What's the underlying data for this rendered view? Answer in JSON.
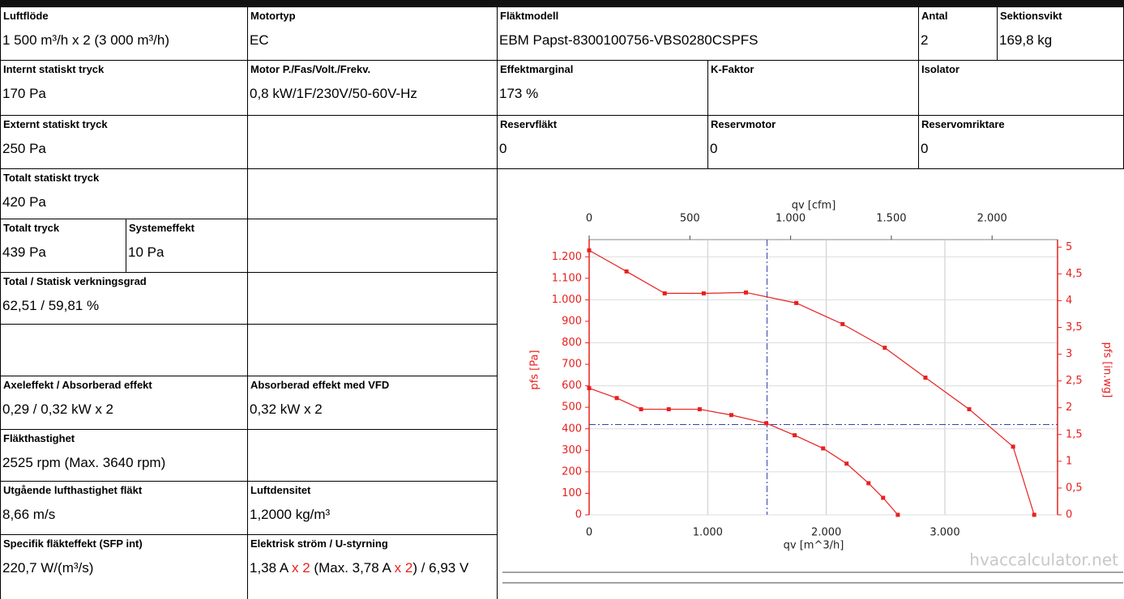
{
  "table": {
    "cells": [
      {
        "label": "Luftflöde",
        "value": "1 500 m³/h x 2 (3 000 m³/h)"
      },
      {
        "label": "Motortyp",
        "value": "EC"
      },
      {
        "label": "Fläktmodell",
        "value": "EBM Papst-8300100756-VBS0280CSPFS"
      },
      {
        "label": "Antal",
        "value": "2"
      },
      {
        "label": "Sektionsvikt",
        "value": "169,8 kg"
      },
      {
        "label": "Internt statiskt tryck",
        "value": "170 Pa"
      },
      {
        "label": "Motor P./Fas/Volt./Frekv.",
        "value": "0,8 kW/1F/230V/50-60V-Hz"
      },
      {
        "label": "Effektmarginal",
        "value": "173 %"
      },
      {
        "label": "K-Faktor"
      },
      {
        "label": "Isolator"
      },
      {
        "label": "Externt statiskt tryck",
        "value": "250 Pa"
      },
      {
        "label": "Reservfläkt",
        "value": "0"
      },
      {
        "label": "Reservmotor",
        "value": "0"
      },
      {
        "label": "Reservomriktare",
        "value": "0"
      },
      {
        "label": "Totalt statiskt tryck",
        "value": "420 Pa"
      },
      {
        "label": "Totalt tryck",
        "value": "439 Pa"
      },
      {
        "label": "Systemeffekt",
        "value": "10 Pa"
      },
      {
        "label": "Total / Statisk verkningsgrad",
        "value": "62,51 / 59,81 %"
      },
      {
        "label": "Axeleffekt / Absorberad effekt",
        "value": "0,29 / 0,32 kW x 2"
      },
      {
        "label": "Absorberad effekt med VFD",
        "value": "0,32 kW x 2"
      },
      {
        "label": "Fläkthastighet",
        "value": "2525 rpm (Max. 3640 rpm)"
      },
      {
        "label": "Utgående lufthastighet fläkt",
        "value": "8,66 m/s"
      },
      {
        "label": "Luftdensitet",
        "value": "1,2000 kg/m³"
      },
      {
        "label": "Specifik fläkteffekt (SFP int)",
        "value": "220,7 W/(m³/s)"
      },
      {
        "label": "Elektrisk ström / U-styrning",
        "value_parts": [
          {
            "text": "1,38 A "
          },
          {
            "text": "x 2",
            "color": "#e8201e"
          },
          {
            "text": " (Max. 3,78 A "
          },
          {
            "text": "x 2",
            "color": "#e8201e"
          },
          {
            "text": ") / 6,93 V"
          }
        ]
      }
    ]
  },
  "chart_data": {
    "type": "line",
    "xlabel": "qv [m^3/h]",
    "x2label": "qv [cfm]",
    "ylabel": "pfs [Pa]",
    "y2label": "pfs [in.wg]",
    "watermark": "hvaccalculator.net",
    "xlim": [
      0,
      3950
    ],
    "xticks": [
      0,
      {
        "value": 1000,
        "label": "1.000"
      },
      {
        "value": 2000,
        "label": "2.000"
      },
      {
        "value": 3000,
        "label": "3.000"
      }
    ],
    "x2lim": [
      0,
      2325
    ],
    "x2ticks": [
      0,
      500,
      {
        "value": 1000,
        "label": "1.000"
      },
      {
        "value": 1500,
        "label": "1.500"
      },
      {
        "value": 2000,
        "label": "2.000"
      }
    ],
    "ylim": [
      0,
      1280
    ],
    "yticks": [
      0,
      100,
      200,
      300,
      400,
      500,
      600,
      700,
      800,
      900,
      {
        "value": 1000,
        "label": "1.000"
      },
      {
        "value": 1100,
        "label": "1.100"
      },
      {
        "value": 1200,
        "label": "1.200"
      }
    ],
    "y2lim": [
      0,
      5.14
    ],
    "y2ticks": [
      0,
      {
        "value": 0.5,
        "label": "0,5"
      },
      1,
      {
        "value": 1.5,
        "label": "1,5"
      },
      2,
      {
        "value": 2.5,
        "label": "2,5"
      },
      3,
      {
        "value": 3.5,
        "label": "3,5"
      },
      4,
      {
        "value": 4.5,
        "label": "4,5"
      },
      5
    ],
    "grid": true,
    "reference_lines": {
      "x": 1500,
      "y": 420,
      "color": "#3344aa"
    },
    "series": [
      {
        "color": "#e8201e",
        "x": [
          0,
          315,
          637,
          966,
          1322,
          1747,
          2137,
          2493,
          2836,
          3205,
          3575,
          3753
        ],
        "values": [
          1230,
          1132,
          1030,
          1030,
          1034,
          985,
          887,
          777,
          638,
          491,
          317,
          0
        ]
      },
      {
        "color": "#e8201e",
        "x": [
          0,
          233,
          438,
          671,
          932,
          1199,
          1493,
          1733,
          1973,
          2171,
          2356,
          2479,
          2603
        ],
        "values": [
          589,
          543,
          491,
          491,
          491,
          464,
          426,
          370,
          309,
          238,
          147,
          79,
          0
        ]
      }
    ]
  }
}
